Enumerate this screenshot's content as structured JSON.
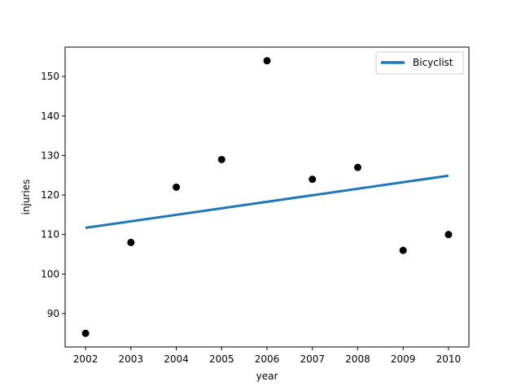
{
  "chart_data": {
    "type": "scatter",
    "title": "",
    "xlabel": "year",
    "ylabel": "injuries",
    "xlim": [
      2001.55,
      2010.45
    ],
    "ylim": [
      81.55,
      157.45
    ],
    "x_ticks": [
      2002,
      2003,
      2004,
      2005,
      2006,
      2007,
      2008,
      2009,
      2010
    ],
    "y_ticks": [
      90,
      100,
      110,
      120,
      130,
      140,
      150
    ],
    "grid": false,
    "legend_position": "top-right",
    "points": {
      "x": [
        2002,
        2003,
        2004,
        2005,
        2006,
        2007,
        2008,
        2009,
        2010
      ],
      "y": [
        85,
        108,
        122,
        129,
        154,
        124,
        127,
        106,
        110
      ],
      "color": "#000000"
    },
    "series": [
      {
        "name": "Bicyclist",
        "type": "line",
        "x": [
          2002,
          2010
        ],
        "y": [
          111.7,
          124.9
        ],
        "color": "#1f77b4"
      }
    ]
  }
}
